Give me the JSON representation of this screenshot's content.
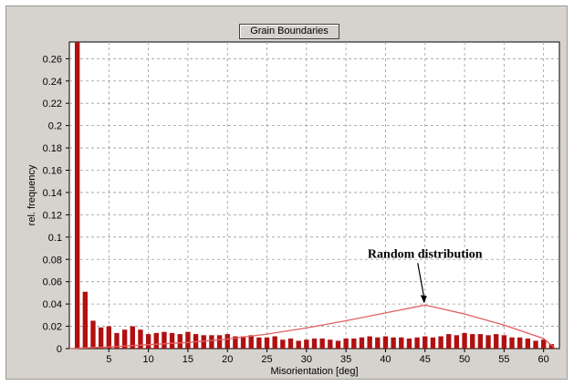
{
  "chart_data": {
    "type": "bar",
    "title": "Grain Boundaries",
    "xlabel": "Misorientation [deg]",
    "ylabel": "rel. frequency",
    "xlim": [
      0,
      62
    ],
    "ylim": [
      0,
      0.275
    ],
    "xticks": [
      "5",
      "10",
      "15",
      "20",
      "25",
      "30",
      "35",
      "40",
      "45",
      "50",
      "55",
      "60"
    ],
    "yticks": [
      "0",
      "0.02",
      "0.04",
      "0.06",
      "0.08",
      "0.1",
      "0.12",
      "0.14",
      "0.16",
      "0.18",
      "0.2",
      "0.22",
      "0.24",
      "0.26"
    ],
    "grid": true,
    "bar_color": "#b01010",
    "curve_color": "#e06060",
    "annotation": {
      "text": "Random distribution",
      "x": 45,
      "y": 0.039
    },
    "series": [
      {
        "x": [
          1,
          2,
          3,
          4,
          5,
          6,
          7,
          8,
          9,
          10,
          11,
          12,
          13,
          14,
          15,
          16,
          17,
          18,
          19,
          20,
          21,
          22,
          23,
          24,
          25,
          26,
          27,
          28,
          29,
          30,
          31,
          32,
          33,
          34,
          35,
          36,
          37,
          38,
          39,
          40,
          41,
          42,
          43,
          44,
          45,
          46,
          47,
          48,
          49,
          50,
          51,
          52,
          53,
          54,
          55,
          56,
          57,
          58,
          59,
          60,
          61
        ],
        "values": [
          0.275,
          0.051,
          0.025,
          0.019,
          0.02,
          0.014,
          0.017,
          0.02,
          0.017,
          0.013,
          0.014,
          0.015,
          0.014,
          0.013,
          0.015,
          0.013,
          0.012,
          0.012,
          0.012,
          0.013,
          0.011,
          0.011,
          0.012,
          0.01,
          0.01,
          0.011,
          0.008,
          0.009,
          0.007,
          0.008,
          0.009,
          0.009,
          0.008,
          0.007,
          0.009,
          0.009,
          0.01,
          0.011,
          0.01,
          0.011,
          0.01,
          0.01,
          0.009,
          0.01,
          0.011,
          0.01,
          0.011,
          0.013,
          0.012,
          0.014,
          0.013,
          0.013,
          0.012,
          0.013,
          0.012,
          0.01,
          0.01,
          0.009,
          0.007,
          0.008,
          0.004
        ]
      }
    ],
    "random_curve": {
      "x": [
        0,
        5,
        10,
        15,
        20,
        25,
        30,
        35,
        40,
        45,
        50,
        55,
        60,
        61.5
      ],
      "y": [
        0,
        0.0015,
        0.0035,
        0.0055,
        0.0085,
        0.013,
        0.0185,
        0.025,
        0.032,
        0.039,
        0.031,
        0.021,
        0.009,
        0
      ]
    }
  }
}
